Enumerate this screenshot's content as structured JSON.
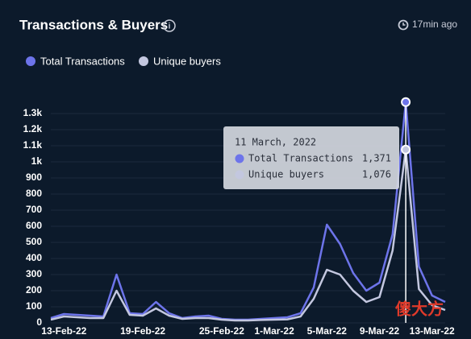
{
  "chart_data": {
    "type": "line",
    "title": "Transactions & Buyers",
    "updated": "17min ago",
    "watermark": "傻大方",
    "categories": [
      null,
      "13-Feb-22",
      null,
      null,
      null,
      null,
      null,
      "19-Feb-22",
      null,
      null,
      null,
      null,
      null,
      "25-Feb-22",
      null,
      null,
      null,
      "1-Mar-22",
      null,
      null,
      null,
      "5-Mar-22",
      null,
      null,
      null,
      "9-Mar-22",
      null,
      null,
      null,
      "13-Mar-22",
      null
    ],
    "series": [
      {
        "name": "Total Transactions",
        "color": "#6d74ea",
        "values": [
          30,
          55,
          50,
          45,
          40,
          300,
          60,
          55,
          130,
          60,
          30,
          40,
          45,
          25,
          20,
          20,
          25,
          30,
          35,
          60,
          220,
          610,
          490,
          310,
          200,
          250,
          550,
          1371,
          350,
          170,
          130
        ],
        "value_labels": [
          null,
          null,
          null,
          null,
          null,
          null,
          null,
          null,
          null,
          null,
          null,
          null,
          null,
          null,
          null,
          null,
          null,
          null,
          null,
          null,
          null,
          null,
          null,
          null,
          null,
          null,
          null,
          "1,371",
          null,
          null,
          null
        ]
      },
      {
        "name": "Unique buyers",
        "color": "#c3c7df",
        "values": [
          20,
          40,
          35,
          30,
          30,
          200,
          50,
          45,
          90,
          45,
          25,
          30,
          30,
          20,
          15,
          15,
          18,
          20,
          22,
          40,
          150,
          330,
          300,
          200,
          130,
          160,
          450,
          1076,
          210,
          110,
          80
        ],
        "value_labels": [
          null,
          null,
          null,
          null,
          null,
          null,
          null,
          null,
          null,
          null,
          null,
          null,
          null,
          null,
          null,
          null,
          null,
          null,
          null,
          null,
          null,
          null,
          null,
          null,
          null,
          null,
          null,
          "1,076",
          null,
          null,
          null
        ]
      }
    ],
    "tooltip": {
      "title": "11 March, 2022"
    },
    "ylim": [
      0,
      1400
    ],
    "yticks": [
      0,
      100,
      200,
      300,
      400,
      500,
      600,
      700,
      800,
      900,
      {
        "value": 1000,
        "label": "1k"
      },
      {
        "value": 1100,
        "label": "1.1k"
      },
      {
        "value": 1200,
        "label": "1.2k"
      },
      {
        "value": 1300,
        "label": "1.3k"
      }
    ],
    "grid": true
  }
}
